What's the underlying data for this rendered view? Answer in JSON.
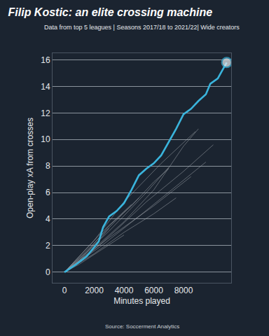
{
  "chart_data": {
    "type": "line",
    "title": "Filip Kostic: an elite crossing machine",
    "subtitle": "Data from top 5 leagues | Seasons 2017/18 to 2021/22| Wide creators",
    "x_label": "Minutes played",
    "y_label": "Open-play xA from crosses",
    "source": "Source: Soccerment Analytics",
    "xlim": [
      -800,
      11200
    ],
    "ylim": [
      -0.8,
      16.5
    ],
    "xticks": [
      0,
      2000,
      4000,
      6000,
      8000
    ],
    "yticks": [
      0,
      2,
      4,
      6,
      8,
      10,
      12,
      14,
      16
    ],
    "grid": "y",
    "series": [
      {
        "color": "#b8bcc2",
        "x": [
          0,
          2000,
          4000,
          6000,
          8000,
          9000
        ],
        "values": [
          0,
          1.8,
          3.8,
          6.2,
          9.5,
          10.8
        ]
      },
      {
        "color": "#b8bcc2",
        "x": [
          0,
          1500,
          3000,
          4500,
          6000,
          7000
        ],
        "values": [
          0,
          1.5,
          3.5,
          5.0,
          6.8,
          7.8
        ]
      },
      {
        "color": "#b8bcc2",
        "x": [
          0,
          2000,
          4000,
          5000
        ],
        "values": [
          0,
          2.2,
          4.5,
          5.6
        ]
      },
      {
        "color": "#b8bcc2",
        "x": [
          0,
          2500,
          5000,
          7500,
          9500
        ],
        "values": [
          0,
          2.0,
          4.2,
          6.5,
          8.3
        ]
      },
      {
        "color": "#b8bcc2",
        "x": [
          0,
          1000,
          2000,
          3000
        ],
        "values": [
          0,
          0.9,
          2.0,
          3.3
        ]
      },
      {
        "color": "#b8bcc2",
        "x": [
          0,
          3000,
          6000,
          8500
        ],
        "values": [
          0,
          2.6,
          5.0,
          7.2
        ]
      },
      {
        "color": "#b8bcc2",
        "x": [
          0,
          2000,
          4000,
          6000,
          7500
        ],
        "values": [
          0,
          1.4,
          3.0,
          4.4,
          5.6
        ]
      },
      {
        "color": "#b8bcc2",
        "x": [
          0,
          1500,
          3500,
          5500,
          8000,
          10000
        ],
        "values": [
          0,
          1.2,
          3.2,
          5.3,
          7.6,
          9.6
        ]
      },
      {
        "color": "#b8bcc2",
        "x": [
          0,
          2500,
          4500
        ],
        "values": [
          0,
          3.0,
          5.1
        ]
      },
      {
        "color": "#b8bcc2",
        "x": [
          0,
          2000,
          4000,
          6500,
          8800
        ],
        "values": [
          0,
          2.4,
          5.3,
          8.2,
          10.6
        ]
      },
      {
        "color": "#b8bcc2",
        "x": [
          0,
          1000,
          2500,
          4000
        ],
        "values": [
          0,
          0.6,
          1.7,
          2.8
        ]
      },
      {
        "color": "#b8bcc2",
        "x": [
          0,
          3000,
          5500,
          7000
        ],
        "values": [
          0,
          3.1,
          6.0,
          7.9
        ]
      },
      {
        "color": "#3ab4dc",
        "line_style": "solid",
        "marker": "end_circle",
        "x": [
          0,
          800,
          1500,
          2000,
          2300,
          2600,
          3000,
          3500,
          4000,
          4500,
          5000,
          5500,
          6000,
          6500,
          7000,
          7500,
          8000,
          8500,
          9000,
          9500,
          9800,
          10300,
          10600,
          10900
        ],
        "values": [
          0,
          0.6,
          1.2,
          1.9,
          2.3,
          3.4,
          4.2,
          4.6,
          5.2,
          6.2,
          7.3,
          7.8,
          8.2,
          8.8,
          9.8,
          10.8,
          11.9,
          12.3,
          12.9,
          13.4,
          14.2,
          14.6,
          15.2,
          15.8
        ]
      }
    ]
  }
}
